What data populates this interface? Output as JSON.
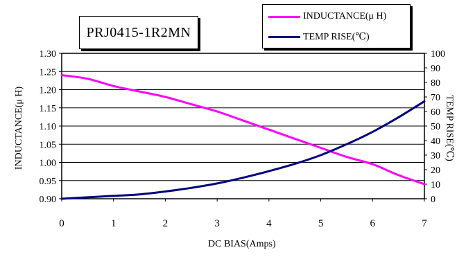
{
  "chart_data": {
    "type": "line",
    "title": "PRJ0415-1R2MN",
    "xlabel": "DC BIAS(Amps)",
    "ylabel_left": "INDUCTANCE(μ H)",
    "ylabel_right": "TEMP RISE(℃)",
    "x_ticks": [
      "0",
      "1",
      "2",
      "3",
      "4",
      "5",
      "6",
      "7"
    ],
    "xlim": [
      0,
      7
    ],
    "y_left_ticks": [
      "0.90",
      "0.95",
      "1.00",
      "1.05",
      "1.10",
      "1.15",
      "1.20",
      "1.25",
      "1.30"
    ],
    "y_left_lim": [
      0.9,
      1.3
    ],
    "y_right_ticks": [
      "0",
      "10",
      "20",
      "30",
      "40",
      "50",
      "60",
      "70",
      "80",
      "90",
      "100"
    ],
    "y_right_lim": [
      0,
      100
    ],
    "grid": true,
    "legend_position": "top-right",
    "series": [
      {
        "name": "INDUCTANCE(μ H)",
        "axis": "left",
        "color": "#ff00ff",
        "x": [
          0,
          0.5,
          1,
          1.5,
          2,
          2.5,
          3,
          3.5,
          4,
          4.5,
          5,
          5.5,
          6,
          6.5,
          7
        ],
        "y": [
          1.24,
          1.23,
          1.21,
          1.195,
          1.18,
          1.16,
          1.14,
          1.115,
          1.09,
          1.065,
          1.04,
          1.015,
          0.995,
          0.965,
          0.94
        ]
      },
      {
        "name": "TEMP RISE(℃)",
        "axis": "right",
        "color": "#000080",
        "x": [
          0,
          0.5,
          1,
          1.5,
          2,
          2.5,
          3,
          3.5,
          4,
          4.5,
          5,
          5.5,
          6,
          6.5,
          7
        ],
        "y": [
          0,
          1,
          2,
          3,
          5,
          7.5,
          10.5,
          14.5,
          19,
          24,
          30,
          37.5,
          46,
          56,
          67
        ]
      }
    ]
  }
}
